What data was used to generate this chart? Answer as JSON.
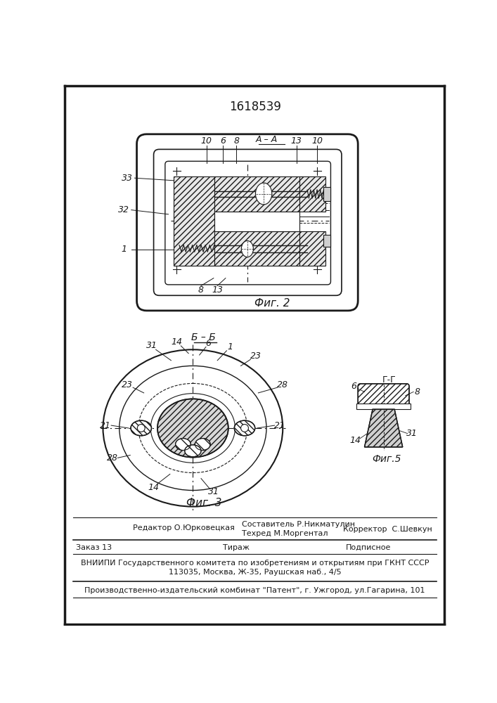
{
  "title": "1618539",
  "fig2_label": "Фиг. 2",
  "fig3_label": "Фиг. 3",
  "fig5_label": "Фиг.5",
  "section_AA": "A – A",
  "section_BB": "Б – Б",
  "section_GG": "Г-Г",
  "footer_line1_left": "Редактор О.Юрковецкая",
  "footer_line1_mid": "Составитель Р.Никматулин",
  "footer_line2_mid": "Техред М.Моргентал",
  "footer_line2_right": "Корректор  С.Шевкун",
  "footer_line3_left": "Заказ 13",
  "footer_line3_mid": "Тираж",
  "footer_line3_right": "Подписное",
  "footer_vnipi": "ВНИИПИ Государственного комитета по изобретениям и открытиям при ГКНТ СССР",
  "footer_address": "113035, Москва, Ж-35, Раушская наб., 4/5",
  "footer_patent": "Производственно-издательский комбинат \"Патент\", г. Ужгород, ул.Гагарина, 101",
  "bg_color": "#ffffff",
  "line_color": "#1a1a1a"
}
